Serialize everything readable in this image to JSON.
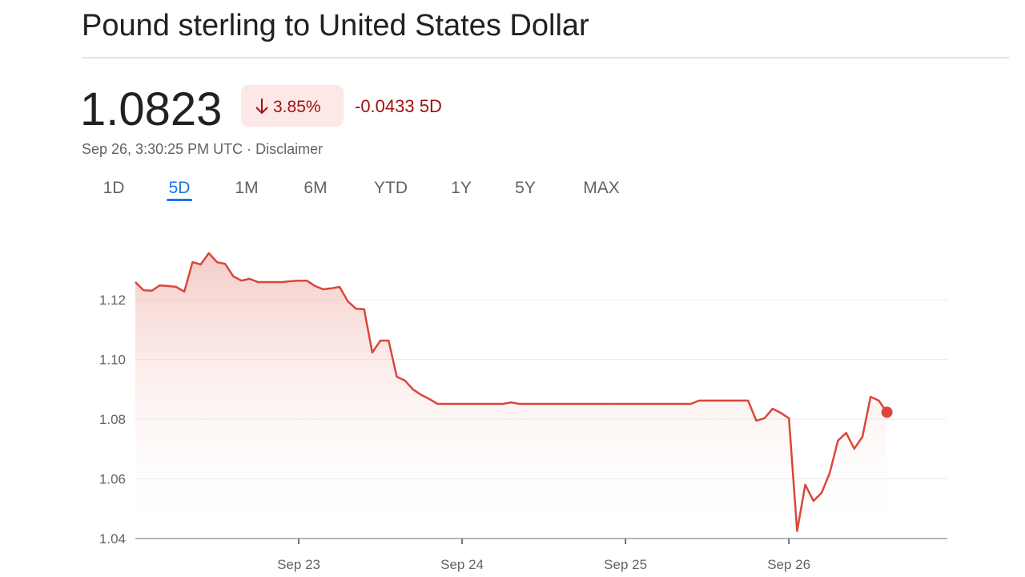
{
  "header": {
    "title": "Pound sterling to United States Dollar"
  },
  "quote": {
    "price": "1.0823",
    "percent_change": "3.85%",
    "change": "-0.0433",
    "period": "5D",
    "timestamp": "Sep 26, 3:30:25 PM UTC",
    "separator": "·",
    "disclaimer": "Disclaimer"
  },
  "tabs": {
    "items": [
      "1D",
      "5D",
      "1M",
      "6M",
      "YTD",
      "1Y",
      "5Y",
      "MAX"
    ],
    "selected": 1
  },
  "chart_data": {
    "type": "line",
    "color": "#d9473a",
    "grid": true,
    "ylim": [
      1.04,
      1.14
    ],
    "yticks": [
      1.04,
      1.06,
      1.08,
      {
        "value": 1.1,
        "label": "1.10"
      },
      1.12
    ],
    "categories": [
      null,
      null,
      null,
      null,
      null,
      null,
      null,
      null,
      null,
      null,
      null,
      null,
      null,
      null,
      null,
      null,
      null,
      null,
      null,
      null,
      "Sep 23",
      null,
      null,
      null,
      null,
      null,
      null,
      null,
      null,
      null,
      null,
      null,
      null,
      null,
      null,
      null,
      null,
      null,
      null,
      null,
      "Sep 24",
      null,
      null,
      null,
      null,
      null,
      null,
      null,
      null,
      null,
      null,
      null,
      null,
      null,
      null,
      null,
      null,
      null,
      null,
      null,
      "Sep 25",
      null,
      null,
      null,
      null,
      null,
      null,
      null,
      null,
      null,
      null,
      null,
      null,
      null,
      null,
      null,
      null,
      null,
      null,
      null,
      "Sep 26",
      null,
      null,
      null,
      null,
      null,
      null,
      null,
      null,
      null,
      null,
      null,
      null,
      null,
      null,
      null,
      null,
      null,
      null,
      null
    ],
    "values": [
      1.1259,
      1.1232,
      1.123,
      1.1248,
      1.1246,
      1.1243,
      1.1227,
      1.1326,
      1.1318,
      1.1356,
      1.1326,
      1.132,
      1.1278,
      1.1264,
      1.127,
      1.1259,
      1.1259,
      1.1259,
      1.1259,
      1.1262,
      1.1264,
      1.1264,
      1.1246,
      1.1235,
      1.1238,
      1.1243,
      1.1195,
      1.117,
      1.1168,
      1.1023,
      1.1063,
      1.1063,
      1.0942,
      1.0929,
      1.0899,
      1.0881,
      1.0867,
      1.0851,
      1.0851,
      1.0851,
      1.0851,
      1.0851,
      1.0851,
      1.0851,
      1.0851,
      1.0851,
      1.0856,
      1.0851,
      1.0851,
      1.0851,
      1.0851,
      1.0851,
      1.0851,
      1.0851,
      1.0851,
      1.0851,
      1.0851,
      1.0851,
      1.0851,
      1.0851,
      1.0851,
      1.0851,
      1.0851,
      1.0851,
      1.0851,
      1.0851,
      1.0851,
      1.0851,
      1.0851,
      1.0862,
      1.0862,
      1.0862,
      1.0862,
      1.0862,
      1.0862,
      1.0862,
      1.0795,
      1.0803,
      1.0835,
      1.0821,
      1.0803,
      1.0425,
      1.058,
      1.0526,
      1.0553,
      1.062,
      1.0728,
      1.0754,
      1.0701,
      1.0741,
      1.0875,
      1.0862,
      1.0823,
      null,
      null,
      null,
      null,
      null,
      null,
      null
    ]
  }
}
